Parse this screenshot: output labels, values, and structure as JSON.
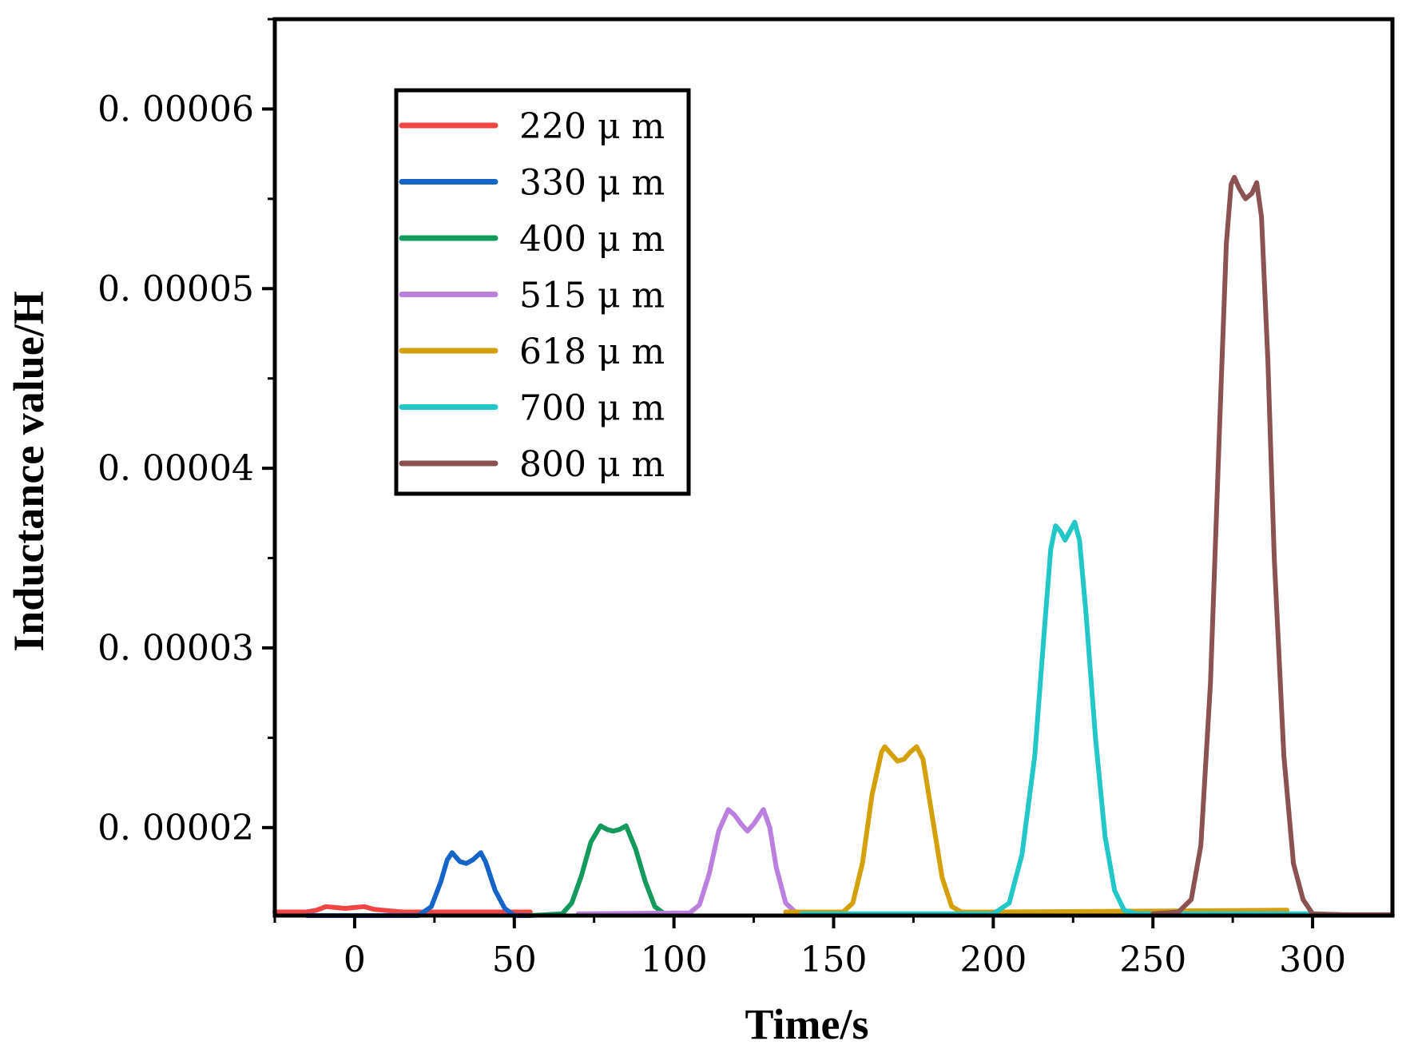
{
  "chart_data": {
    "type": "line",
    "title": "",
    "xlabel": "Time/s",
    "ylabel": "Inductance value/H",
    "xlim": [
      -25,
      325
    ],
    "ylim": [
      1.51e-05,
      6.5e-05
    ],
    "xticks": [
      0,
      50,
      100,
      150,
      200,
      250,
      300
    ],
    "xtick_labels": [
      "0",
      "50",
      "100",
      "150",
      "200",
      "250",
      "300"
    ],
    "yticks": [
      2e-05,
      3e-05,
      4e-05,
      5e-05,
      6e-05
    ],
    "ytick_labels": [
      "0. 00002",
      "0. 00003",
      "0. 00004",
      "0. 00005",
      "0. 00006"
    ],
    "legend_position": "top-left",
    "series": [
      {
        "name": "220 μ m",
        "color": "#f04545",
        "points": [
          [
            -25,
            15.3
          ],
          [
            -15,
            15.3
          ],
          [
            -12,
            15.4
          ],
          [
            -9,
            15.6
          ],
          [
            -6,
            15.55
          ],
          [
            -3,
            15.5
          ],
          [
            0,
            15.55
          ],
          [
            3,
            15.6
          ],
          [
            6,
            15.45
          ],
          [
            9,
            15.4
          ],
          [
            15,
            15.3
          ],
          [
            55,
            15.3
          ]
        ]
      },
      {
        "name": "330 μ m",
        "color": "#1565c8",
        "points": [
          [
            -15,
            15.1
          ],
          [
            20,
            15.1
          ],
          [
            24,
            15.6
          ],
          [
            27,
            17.0
          ],
          [
            29,
            18.2
          ],
          [
            30.5,
            18.6
          ],
          [
            33,
            18.1
          ],
          [
            35,
            18.0
          ],
          [
            37,
            18.2
          ],
          [
            39.5,
            18.6
          ],
          [
            41,
            18.1
          ],
          [
            44,
            16.5
          ],
          [
            47,
            15.5
          ],
          [
            50,
            15.1
          ],
          [
            55,
            15.1
          ]
        ]
      },
      {
        "name": "400 μ m",
        "color": "#149a5c",
        "points": [
          [
            55,
            15.1
          ],
          [
            65,
            15.2
          ],
          [
            68,
            15.8
          ],
          [
            71,
            17.3
          ],
          [
            74,
            19.2
          ],
          [
            77,
            20.1
          ],
          [
            79,
            19.9
          ],
          [
            81,
            19.8
          ],
          [
            83,
            19.9
          ],
          [
            85,
            20.1
          ],
          [
            88,
            18.8
          ],
          [
            91,
            17.0
          ],
          [
            94,
            15.6
          ],
          [
            97,
            15.2
          ],
          [
            100,
            15.2
          ]
        ]
      },
      {
        "name": "515 μ m",
        "color": "#bb80dd",
        "points": [
          [
            70,
            15.2
          ],
          [
            105,
            15.25
          ],
          [
            108,
            15.7
          ],
          [
            111,
            17.4
          ],
          [
            114,
            19.8
          ],
          [
            117,
            21.0
          ],
          [
            119,
            20.7
          ],
          [
            121,
            20.2
          ],
          [
            123,
            19.8
          ],
          [
            125,
            20.2
          ],
          [
            128,
            21.0
          ],
          [
            130,
            20.0
          ],
          [
            132,
            17.8
          ],
          [
            135,
            15.8
          ],
          [
            138,
            15.3
          ],
          [
            145,
            15.3
          ]
        ]
      },
      {
        "name": "618 μ m",
        "color": "#d4a008",
        "points": [
          [
            135,
            15.3
          ],
          [
            153,
            15.3
          ],
          [
            156,
            15.8
          ],
          [
            159,
            18.0
          ],
          [
            162,
            21.8
          ],
          [
            165,
            24.2
          ],
          [
            166,
            24.5
          ],
          [
            168,
            24.1
          ],
          [
            170,
            23.7
          ],
          [
            172,
            23.8
          ],
          [
            174,
            24.2
          ],
          [
            176,
            24.5
          ],
          [
            178,
            23.8
          ],
          [
            181,
            20.5
          ],
          [
            184,
            17.2
          ],
          [
            187,
            15.6
          ],
          [
            190,
            15.3
          ],
          [
            200,
            15.3
          ],
          [
            292,
            15.4
          ]
        ]
      },
      {
        "name": "700 μ m",
        "color": "#22c8c8",
        "points": [
          [
            140,
            15.2
          ],
          [
            200,
            15.2
          ],
          [
            205,
            15.8
          ],
          [
            209,
            18.5
          ],
          [
            213,
            24.0
          ],
          [
            216,
            31.0
          ],
          [
            218,
            35.5
          ],
          [
            219.5,
            36.8
          ],
          [
            221,
            36.5
          ],
          [
            222.5,
            36.0
          ],
          [
            224,
            36.5
          ],
          [
            225.5,
            37.0
          ],
          [
            227,
            36.0
          ],
          [
            229,
            32.0
          ],
          [
            232,
            25.0
          ],
          [
            235,
            19.5
          ],
          [
            238,
            16.5
          ],
          [
            241,
            15.4
          ],
          [
            245,
            15.2
          ],
          [
            300,
            15.2
          ]
        ]
      },
      {
        "name": "800 μ m",
        "color": "#8b5252",
        "points": [
          [
            250,
            15.2
          ],
          [
            258,
            15.3
          ],
          [
            262,
            16.0
          ],
          [
            265,
            19.0
          ],
          [
            268,
            28.0
          ],
          [
            271,
            43.0
          ],
          [
            273,
            52.5
          ],
          [
            274.5,
            55.8
          ],
          [
            275.5,
            56.2
          ],
          [
            277,
            55.6
          ],
          [
            279,
            55.0
          ],
          [
            281,
            55.3
          ],
          [
            282.5,
            55.9
          ],
          [
            284,
            54.0
          ],
          [
            286,
            46.0
          ],
          [
            288,
            35.0
          ],
          [
            291,
            24.0
          ],
          [
            294,
            18.0
          ],
          [
            297,
            16.0
          ],
          [
            300,
            15.2
          ],
          [
            310,
            15.15
          ],
          [
            325,
            15.15
          ]
        ]
      }
    ]
  }
}
